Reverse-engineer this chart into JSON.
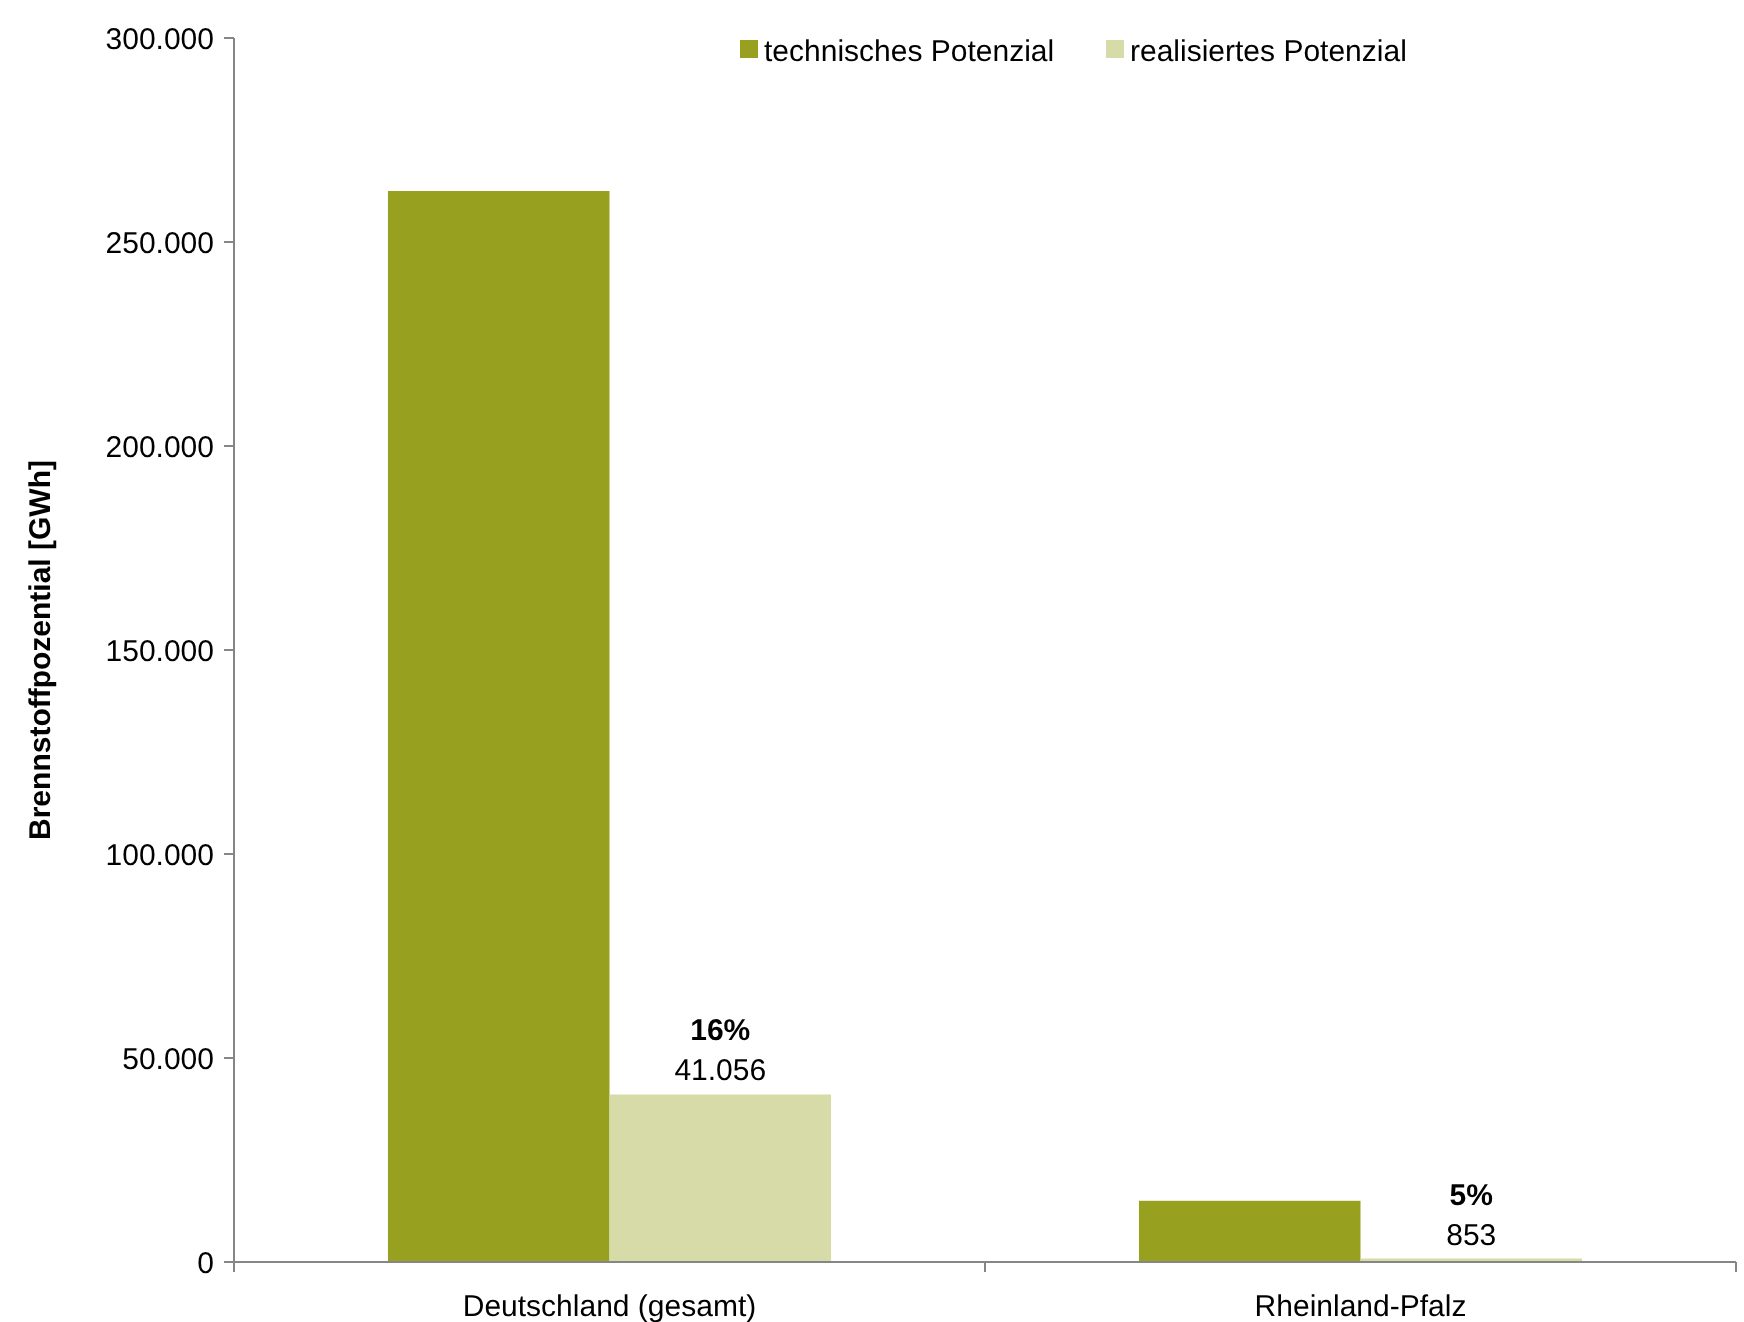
{
  "chart_data": {
    "type": "bar",
    "ylabel": "Brennstoffpozential [GWh]",
    "categories": [
      "Deutschland (gesamt)",
      "Rheinland-Pfalz"
    ],
    "series": [
      {
        "name": "technisches Potenzial",
        "color": "#98a020",
        "values": [
          262500,
          15000
        ]
      },
      {
        "name": "realisiertes Potenzial",
        "color": "#d6dba8",
        "values": [
          41056,
          853
        ],
        "value_labels": [
          "41.056",
          "853"
        ]
      }
    ],
    "annotations": [
      "16%",
      "5%"
    ],
    "ylim": [
      0,
      300000
    ],
    "yticks": [
      {
        "value": 0,
        "label": "0"
      },
      {
        "value": 50000,
        "label": "50.000"
      },
      {
        "value": 100000,
        "label": "100.000"
      },
      {
        "value": 150000,
        "label": "150.000"
      },
      {
        "value": 200000,
        "label": "200.000"
      },
      {
        "value": 250000,
        "label": "250.000"
      },
      {
        "value": 300000,
        "label": "300.000"
      }
    ],
    "grid": false,
    "legend": "top right"
  }
}
